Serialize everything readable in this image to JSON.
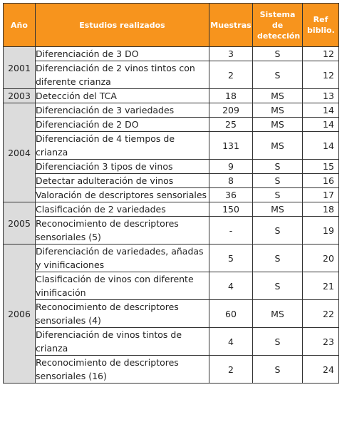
{
  "headers": {
    "year": "Año",
    "study": "Estudios realizados",
    "samples": "Muestras",
    "system": "Sistema de detección",
    "ref": "Ref biblio."
  },
  "groups": [
    {
      "year": "2001",
      "rows": [
        {
          "study": "Diferenciación de 3 DO",
          "samples": "3",
          "system": "S",
          "ref": "12"
        },
        {
          "study": "Diferenciación de 2 vinos tintos con diferente crianza",
          "samples": "2",
          "system": "S",
          "ref": "12"
        }
      ]
    },
    {
      "year": "2003",
      "rows": [
        {
          "study": "Detección del TCA",
          "samples": "18",
          "system": "MS",
          "ref": "13"
        }
      ]
    },
    {
      "year": "2004",
      "rows": [
        {
          "study": "Diferenciación de 3 variedades",
          "samples": "209",
          "system": "MS",
          "ref": "14"
        },
        {
          "study": "Diferenciación de 2 DO",
          "samples": "25",
          "system": "MS",
          "ref": "14"
        },
        {
          "study": "Diferenciación de 4 tiempos de crianza",
          "samples": "131",
          "system": "MS",
          "ref": "14"
        },
        {
          "study": "Diferenciación 3 tipos de vinos",
          "samples": "9",
          "system": "S",
          "ref": "15"
        },
        {
          "study": "Detectar adulteración de vinos",
          "samples": "8",
          "system": "S",
          "ref": "16"
        },
        {
          "study": "Valoración de descriptores sensoriales",
          "samples": "36",
          "system": "S",
          "ref": "17"
        }
      ]
    },
    {
      "year": "2005",
      "rows": [
        {
          "study": "Clasificación de 2 variedades",
          "samples": "150",
          "system": "MS",
          "ref": "18"
        },
        {
          "study": "Reconocimiento de descriptores sensoriales (5)",
          "samples": "-",
          "system": "S",
          "ref": "19"
        }
      ]
    },
    {
      "year": "2006",
      "rows": [
        {
          "study": "Diferenciación de variedades, añadas y vinificaciones",
          "samples": "5",
          "system": "S",
          "ref": "20"
        },
        {
          "study": "Clasificación de vinos con diferente vinificación",
          "samples": "4",
          "system": "S",
          "ref": "21"
        },
        {
          "study": "Reconocimiento de descriptores sensoriales (4)",
          "samples": "60",
          "system": "MS",
          "ref": "22"
        },
        {
          "study": "Diferenciación de vinos tintos de crianza",
          "samples": "4",
          "system": "S",
          "ref": "23"
        },
        {
          "study": "Reconocimiento de descriptores sensoriales (16)",
          "samples": "2",
          "system": "S",
          "ref": "24"
        }
      ]
    }
  ]
}
